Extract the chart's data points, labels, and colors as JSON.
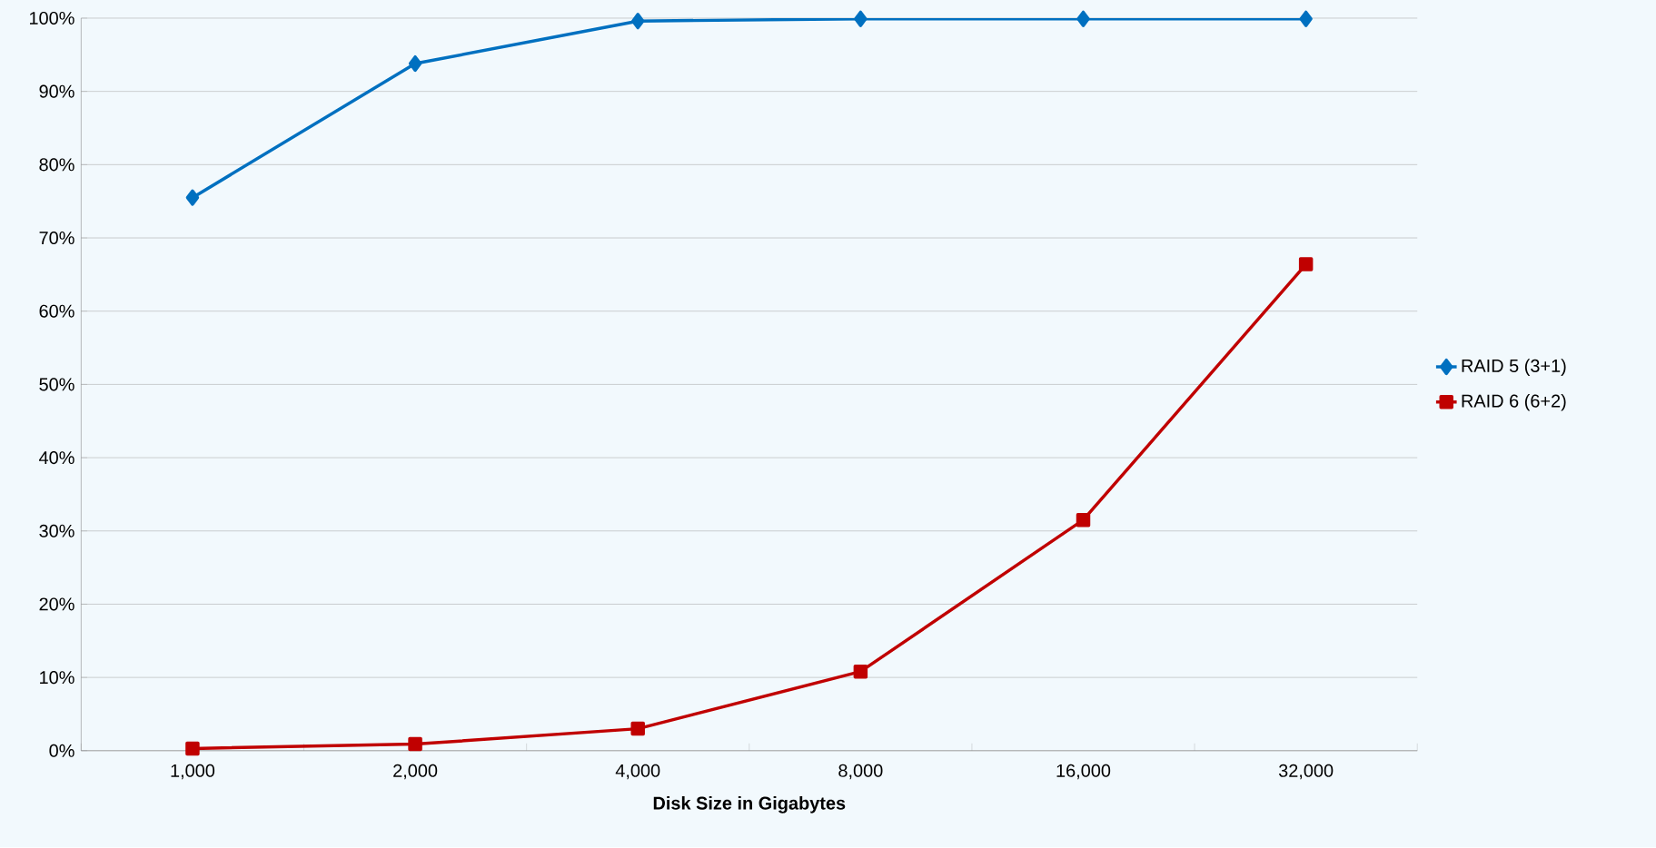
{
  "chart_data": {
    "type": "line",
    "xlabel": "Disk Size in Gigabytes",
    "categories": [
      "1,000",
      "2,000",
      "4,000",
      "8,000",
      "16,000",
      "32,000"
    ],
    "series": [
      {
        "name": "RAID 5 (3+1)",
        "color": "#0070c0",
        "marker": "diamond",
        "values": [
          75.5,
          93.8,
          99.6,
          99.9,
          99.9,
          99.9
        ]
      },
      {
        "name": "RAID 6 (6+2)",
        "color": "#c00000",
        "marker": "square",
        "values": [
          0.3,
          0.9,
          3.0,
          10.8,
          31.5,
          66.4
        ]
      }
    ],
    "ylim": [
      0,
      100
    ],
    "yticks": [
      {
        "value": 0,
        "label": "0%"
      },
      {
        "value": 10,
        "label": "10%"
      },
      {
        "value": 20,
        "label": "20%"
      },
      {
        "value": 30,
        "label": "30%"
      },
      {
        "value": 40,
        "label": "40%"
      },
      {
        "value": 50,
        "label": "50%"
      },
      {
        "value": 60,
        "label": "60%"
      },
      {
        "value": 70,
        "label": "70%"
      },
      {
        "value": 80,
        "label": "80%"
      },
      {
        "value": 90,
        "label": "90%"
      },
      {
        "value": 100,
        "label": "100%"
      }
    ],
    "grid": "y",
    "legend": "right",
    "line_style": "solid"
  }
}
